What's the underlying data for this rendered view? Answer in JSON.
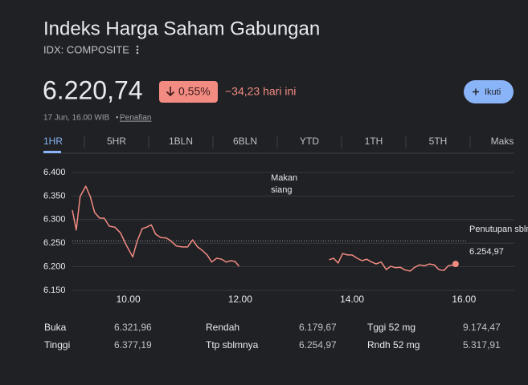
{
  "header": {
    "title": "Indeks Harga Saham Gabungan",
    "ticker": "IDX: COMPOSITE"
  },
  "quote": {
    "price": "6.220,74",
    "change_pct": "0,55%",
    "change_abs": "−34,23 hari ini",
    "timestamp": "17 Jun, 16.00 WIB",
    "separator": "•",
    "disclaimer": "Penafian",
    "follow": "Ikuti"
  },
  "tabs": {
    "items": [
      "1HR",
      "5HR",
      "1BLN",
      "6BLN",
      "YTD",
      "1TH",
      "5TH",
      "Maks"
    ],
    "active": 0
  },
  "chart_data": {
    "type": "line",
    "color": "#f28b82",
    "grid": true,
    "x": [
      9.0,
      9.07,
      9.14,
      9.24,
      9.32,
      9.4,
      9.49,
      9.57,
      9.66,
      9.76,
      9.86,
      9.96,
      10.08,
      10.16,
      10.25,
      10.33,
      10.41,
      10.49,
      10.58,
      10.68,
      10.76,
      10.86,
      10.96,
      11.06,
      11.15,
      11.24,
      11.32,
      11.41,
      11.49,
      11.58,
      11.67,
      11.75,
      11.84,
      11.91,
      11.98,
      null,
      13.59,
      13.67,
      13.75,
      13.83,
      13.92,
      14.0,
      14.09,
      14.18,
      14.26,
      14.35,
      14.43,
      14.52,
      14.61,
      14.69,
      14.78,
      14.86,
      14.95,
      15.04,
      15.12,
      15.21,
      15.29,
      15.38,
      15.47,
      15.55,
      15.64,
      15.72,
      15.81,
      15.85
    ],
    "values": [
      6320,
      6278,
      6349,
      6371,
      6349,
      6315,
      6303,
      6303,
      6286,
      6284,
      6272,
      6247,
      6221,
      6255,
      6281,
      6284,
      6289,
      6269,
      6262,
      6261,
      6255,
      6244,
      6242,
      6242,
      6257,
      6242,
      6235,
      6225,
      6210,
      6218,
      6216,
      6210,
      6213,
      6211,
      6201,
      null,
      6215,
      6218,
      6208,
      6228,
      6225,
      6225,
      6218,
      6213,
      6216,
      6210,
      6206,
      6210,
      6194,
      6201,
      6198,
      6199,
      6193,
      6191,
      6199,
      6204,
      6202,
      6206,
      6204,
      6194,
      6192,
      6202,
      6204,
      6206
    ],
    "xlim": [
      9.0,
      16.9
    ],
    "ylim": [
      6150,
      6400
    ],
    "xticks": [
      {
        "value": 10,
        "label": "10.00"
      },
      {
        "value": 12,
        "label": "12.00"
      },
      {
        "value": 14,
        "label": "14.00"
      },
      {
        "value": 16,
        "label": "16.00"
      }
    ],
    "yticks": [
      {
        "value": 6150,
        "label": "6.150"
      },
      {
        "value": 6200,
        "label": "6.200"
      },
      {
        "value": 6250,
        "label": "6.250"
      },
      {
        "value": 6300,
        "label": "6.300"
      },
      {
        "value": 6350,
        "label": "6.350"
      },
      {
        "value": 6400,
        "label": "6.400"
      }
    ],
    "prev_close": {
      "value": 6254.97,
      "value_label": "6.254,97",
      "label": "Penutupan sblmnya"
    },
    "annotation": {
      "text": "Makan siang",
      "x": 12.55
    }
  },
  "stats": {
    "rows": [
      [
        "Buka",
        "6.321,96",
        "Rendah",
        "6.179,67",
        "Tggi 52 mg",
        "9.174,47"
      ],
      [
        "Tinggi",
        "6.377,19",
        "Ttp sblmnya",
        "6.254,97",
        "Rndh 52 mg",
        "5.317,91"
      ]
    ]
  }
}
